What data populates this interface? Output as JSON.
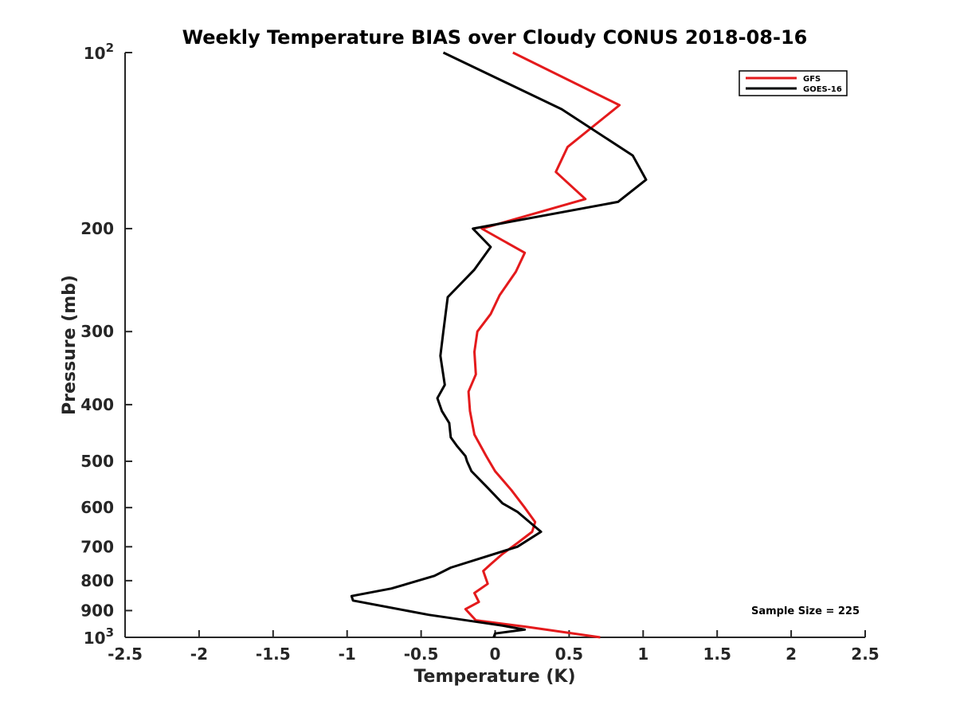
{
  "chart_data": {
    "type": "line",
    "title": "Weekly Temperature BIAS over Cloudy CONUS 2018-08-16",
    "xlabel": "Temperature (K)",
    "ylabel": "Pressure (mb)",
    "xlim": [
      -2.5,
      2.5
    ],
    "ylim": [
      100,
      1000
    ],
    "yscale": "log",
    "y_reversed": true,
    "x_ticks": [
      "-2.5",
      "-2",
      "-1.5",
      "-1",
      "-0.5",
      "0",
      "0.5",
      "1",
      "1.5",
      "2",
      "2.5"
    ],
    "y_ticks": [
      {
        "value": 100,
        "base": "10",
        "exp": "2"
      },
      {
        "value": 200,
        "label": "200"
      },
      {
        "value": 300,
        "label": "300"
      },
      {
        "value": 400,
        "label": "400"
      },
      {
        "value": 500,
        "label": "500"
      },
      {
        "value": 600,
        "label": "600"
      },
      {
        "value": 700,
        "label": "700"
      },
      {
        "value": 800,
        "label": "800"
      },
      {
        "value": 900,
        "label": "900"
      },
      {
        "value": 1000,
        "base": "10",
        "exp": "3"
      }
    ],
    "legend_position": "top-right",
    "grid": false,
    "annotation": "Sample Size = 225",
    "series": [
      {
        "name": "GFS",
        "color": "#e41a1c",
        "points": [
          [
            0.12,
            100
          ],
          [
            0.84,
            123
          ],
          [
            0.49,
            145
          ],
          [
            0.41,
            160
          ],
          [
            0.61,
            178
          ],
          [
            -0.09,
            200
          ],
          [
            0.2,
            220
          ],
          [
            0.14,
            237
          ],
          [
            0.03,
            260
          ],
          [
            -0.03,
            280
          ],
          [
            -0.12,
            300
          ],
          [
            -0.14,
            325
          ],
          [
            -0.13,
            355
          ],
          [
            -0.18,
            380
          ],
          [
            -0.17,
            410
          ],
          [
            -0.14,
            450
          ],
          [
            -0.06,
            490
          ],
          [
            0.0,
            520
          ],
          [
            0.11,
            560
          ],
          [
            0.2,
            600
          ],
          [
            0.27,
            635
          ],
          [
            0.25,
            660
          ],
          [
            0.15,
            690
          ],
          [
            0.05,
            720
          ],
          [
            -0.03,
            750
          ],
          [
            -0.08,
            770
          ],
          [
            -0.05,
            810
          ],
          [
            -0.14,
            840
          ],
          [
            -0.11,
            870
          ],
          [
            -0.2,
            895
          ],
          [
            -0.13,
            935
          ],
          [
            0.22,
            960
          ],
          [
            0.71,
            1000
          ]
        ]
      },
      {
        "name": "GOES-16",
        "color": "#000000",
        "points": [
          [
            -0.35,
            100
          ],
          [
            0.45,
            125
          ],
          [
            0.93,
            150
          ],
          [
            1.02,
            165
          ],
          [
            0.83,
            180
          ],
          [
            -0.15,
            200
          ],
          [
            -0.03,
            215
          ],
          [
            -0.14,
            235
          ],
          [
            -0.32,
            262
          ],
          [
            -0.35,
            300
          ],
          [
            -0.37,
            330
          ],
          [
            -0.34,
            370
          ],
          [
            -0.39,
            390
          ],
          [
            -0.36,
            410
          ],
          [
            -0.31,
            430
          ],
          [
            -0.3,
            455
          ],
          [
            -0.26,
            470
          ],
          [
            -0.2,
            490
          ],
          [
            -0.19,
            500
          ],
          [
            -0.16,
            520
          ],
          [
            -0.05,
            555
          ],
          [
            0.05,
            590
          ],
          [
            0.15,
            610
          ],
          [
            0.31,
            660
          ],
          [
            0.15,
            700
          ],
          [
            -0.3,
            760
          ],
          [
            -0.41,
            785
          ],
          [
            -0.7,
            825
          ],
          [
            -0.97,
            850
          ],
          [
            -0.96,
            865
          ],
          [
            -0.45,
            915
          ],
          [
            0.05,
            955
          ],
          [
            0.2,
            970
          ],
          [
            0.0,
            985
          ],
          [
            -0.01,
            1000
          ]
        ]
      }
    ]
  }
}
